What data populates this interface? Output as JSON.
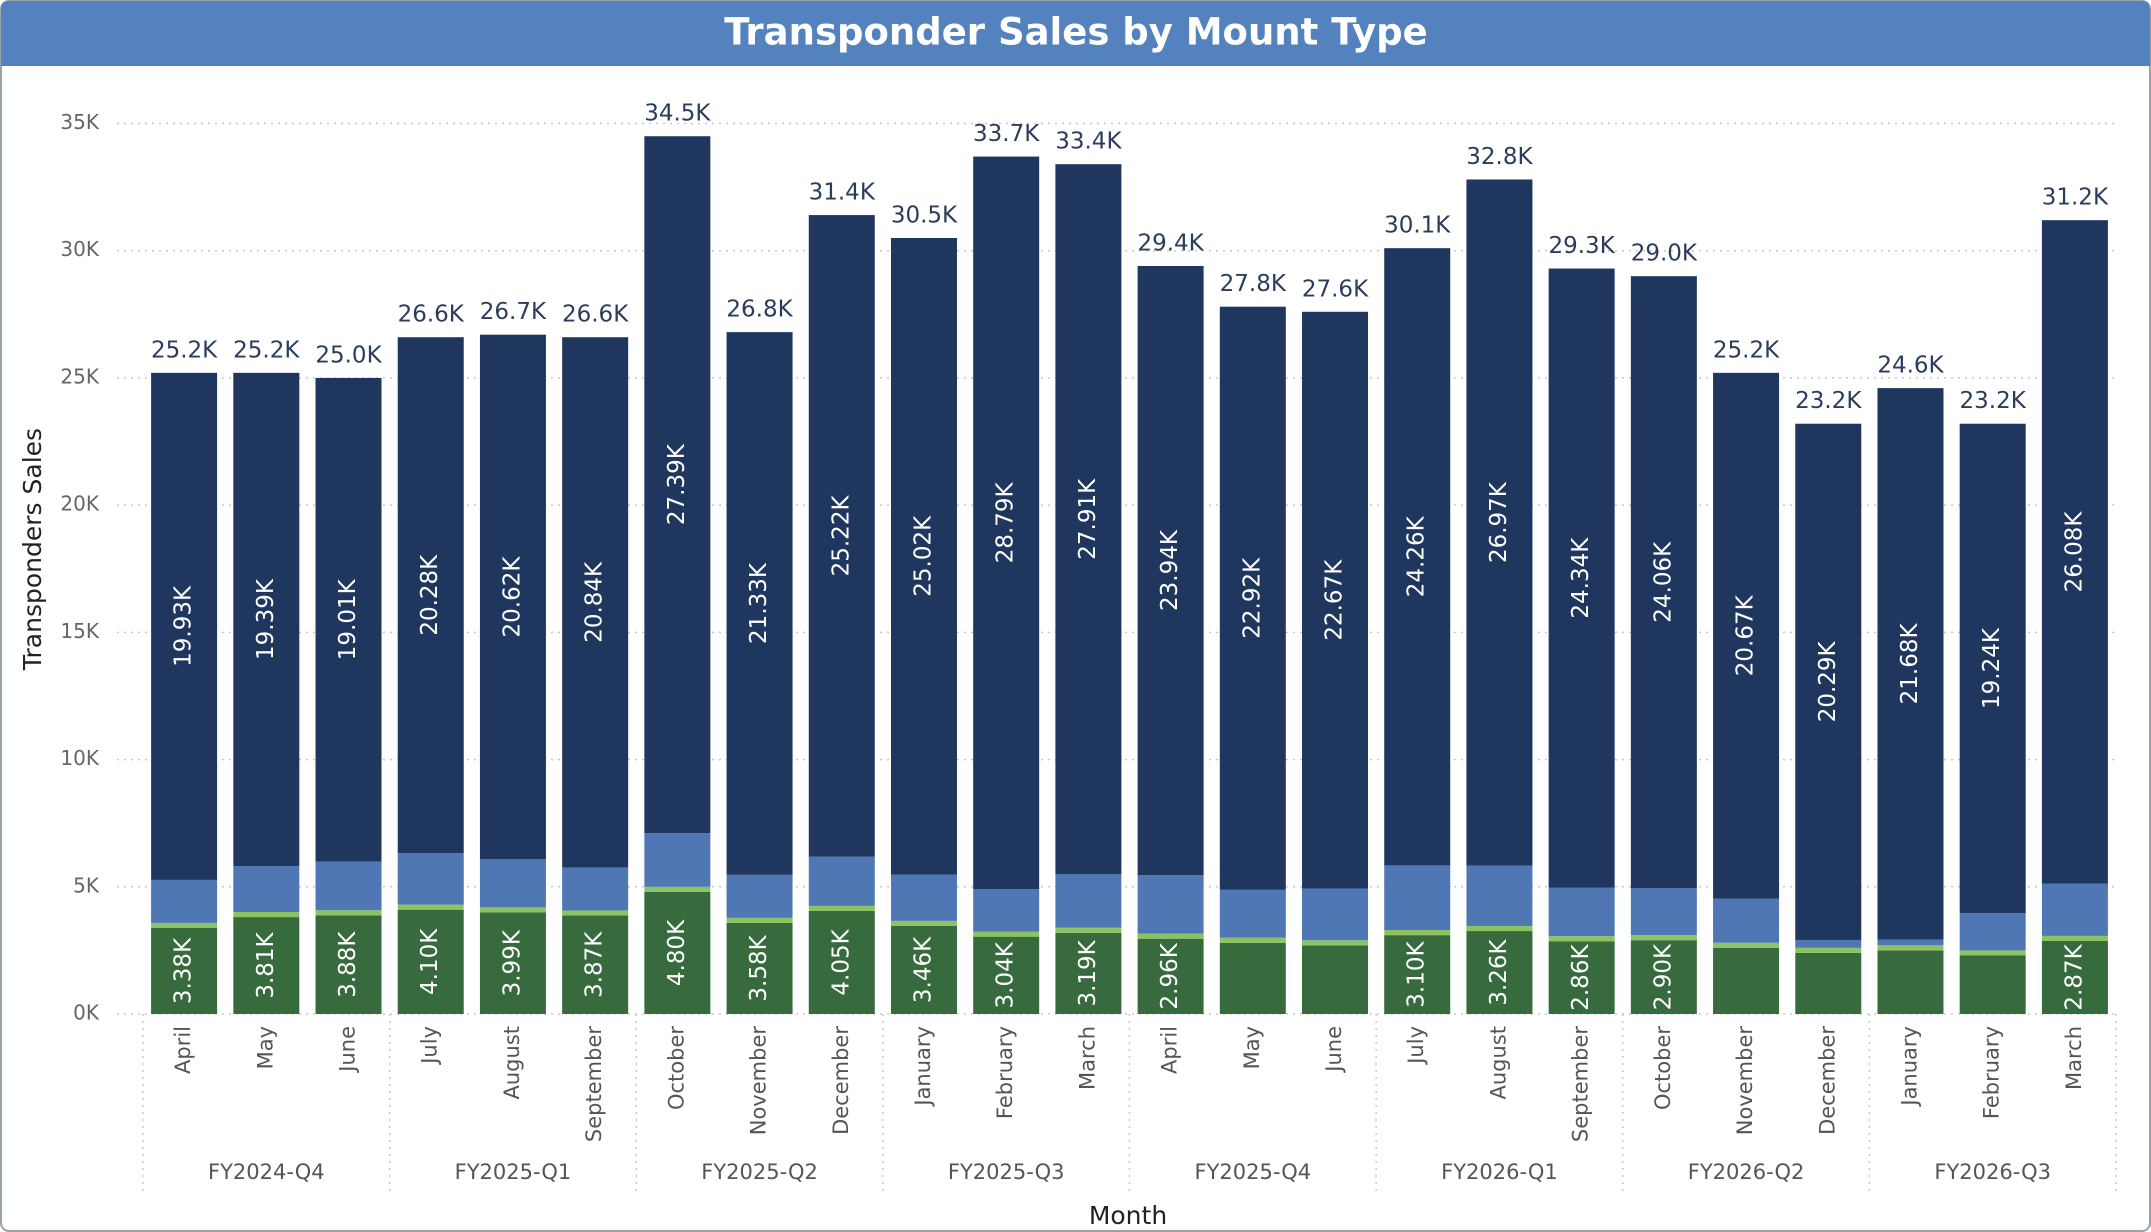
{
  "chart_data": {
    "type": "stacked_bar",
    "title": "Transponder Sales by Mount Type",
    "x_label": "Month",
    "y_label": "Transponders Sales",
    "categories": [
      "April",
      "May",
      "June",
      "July",
      "August",
      "September",
      "October",
      "November",
      "December",
      "January",
      "February",
      "March",
      "April",
      "May",
      "June",
      "July",
      "August",
      "September",
      "October",
      "November",
      "December",
      "January",
      "February",
      "March"
    ],
    "x_groups": [
      "FY2024-Q4",
      "FY2025-Q1",
      "FY2025-Q2",
      "FY2025-Q3",
      "FY2025-Q4",
      "FY2026-Q1",
      "FY2026-Q2",
      "FY2026-Q3"
    ],
    "series": [
      {
        "color": "#376b3e",
        "values": [
          3380,
          3810,
          3880,
          4100,
          3990,
          3870,
          4800,
          3580,
          4050,
          3460,
          3040,
          3190,
          2960,
          2800,
          2700,
          3100,
          3260,
          2860,
          2900,
          2600,
          2400,
          2500,
          2300,
          2870
        ],
        "value_labels": [
          "3.38K",
          "3.81K",
          "3.88K",
          "4.10K",
          "3.99K",
          "3.87K",
          "4.80K",
          "3.58K",
          "4.05K",
          "3.46K",
          "3.04K",
          "3.19K",
          "2.96K",
          null,
          null,
          "3.10K",
          "3.26K",
          "2.86K",
          "2.90K",
          null,
          null,
          null,
          null,
          "2.87K"
        ]
      },
      {
        "color": "#8dc263",
        "values": [
          200,
          200,
          200,
          200,
          200,
          200,
          200,
          200,
          200,
          200,
          200,
          200,
          200,
          200,
          200,
          200,
          200,
          200,
          200,
          200,
          200,
          200,
          200,
          200
        ]
      },
      {
        "color": "#4e77b4",
        "values": [
          1690,
          1800,
          1910,
          2020,
          1890,
          1690,
          2110,
          1690,
          1930,
          1820,
          1670,
          2100,
          2300,
          1880,
          2030,
          2540,
          2370,
          1900,
          1840,
          1730,
          310,
          220,
          1460,
          2050
        ]
      },
      {
        "color": "#1f375f",
        "values": [
          19930,
          19390,
          19010,
          20280,
          20620,
          20840,
          27390,
          21330,
          25220,
          25020,
          28790,
          27910,
          23940,
          22920,
          22670,
          24260,
          26970,
          24340,
          24060,
          20670,
          20290,
          21680,
          19240,
          26080
        ],
        "value_labels": [
          "19.93K",
          "19.39K",
          "19.01K",
          "20.28K",
          "20.62K",
          "20.84K",
          "27.39K",
          "21.33K",
          "25.22K",
          "25.02K",
          "28.79K",
          "27.91K",
          "23.94K",
          "22.92K",
          "22.67K",
          "24.26K",
          "26.97K",
          "24.34K",
          "24.06K",
          "20.67K",
          "20.29K",
          "21.68K",
          "19.24K",
          "26.08K"
        ]
      }
    ],
    "totals": [
      25200,
      25200,
      25000,
      26600,
      26700,
      26600,
      34500,
      26800,
      31400,
      30500,
      33700,
      33400,
      29400,
      27800,
      27600,
      30100,
      32800,
      29300,
      29000,
      25200,
      23200,
      24600,
      23200,
      31200
    ],
    "total_labels": [
      "25.2K",
      "25.2K",
      "25.0K",
      "26.6K",
      "26.7K",
      "26.6K",
      "34.5K",
      "26.8K",
      "31.4K",
      "30.5K",
      "33.7K",
      "33.4K",
      "29.4K",
      "27.8K",
      "27.6K",
      "30.1K",
      "32.8K",
      "29.3K",
      "29.0K",
      "25.2K",
      "23.2K",
      "24.6K",
      "23.2K",
      "31.2K"
    ],
    "ylim": [
      0,
      35000
    ],
    "yticks": [
      {
        "value": 0,
        "label": "0K"
      },
      {
        "value": 5000,
        "label": "5K"
      },
      {
        "value": 10000,
        "label": "10K"
      },
      {
        "value": 15000,
        "label": "15K"
      },
      {
        "value": 20000,
        "label": "20K"
      },
      {
        "value": 25000,
        "label": "25K"
      },
      {
        "value": 30000,
        "label": "30K"
      },
      {
        "value": 35000,
        "label": "35K"
      }
    ],
    "grid": true
  }
}
